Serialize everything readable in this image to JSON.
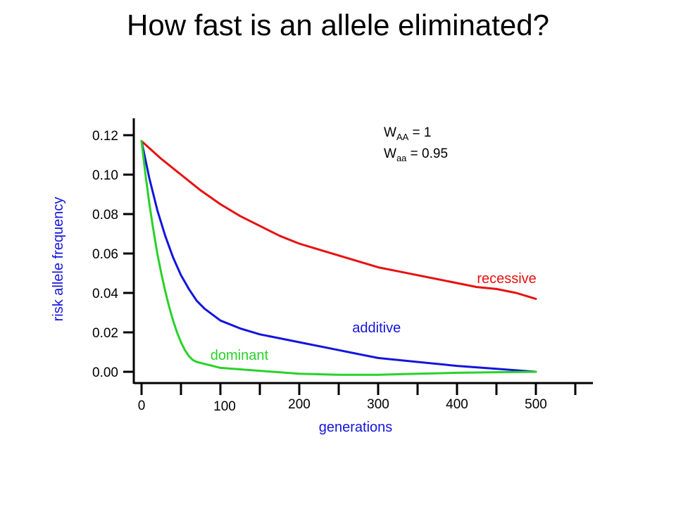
{
  "title": "How fast is an allele eliminated?",
  "chart_data": {
    "type": "line",
    "xlabel": "generations",
    "ylabel": "risk allele frequency",
    "xlim": [
      0,
      500
    ],
    "ylim": [
      0,
      0.12
    ],
    "x_ticks": [
      0,
      100,
      200,
      300,
      400,
      500
    ],
    "x_tick_labels": [
      "0",
      "100",
      "200",
      "300",
      "400",
      "500"
    ],
    "y_ticks": [
      0,
      0.02,
      0.04,
      0.06,
      0.08,
      0.1,
      0.12
    ],
    "y_tick_labels": [
      "0.00",
      "0.02",
      "0.04",
      "0.06",
      "0.08",
      "0.10",
      "0.12"
    ],
    "grid": false,
    "annotations": [
      {
        "base": "W",
        "sub": "AA",
        "rest": " = 1"
      },
      {
        "base": "W",
        "sub": "aa",
        "rest": " = 0.95"
      }
    ],
    "series": [
      {
        "name": "recessive",
        "color": "#e81010",
        "x": [
          0,
          25,
          50,
          75,
          100,
          125,
          150,
          175,
          200,
          225,
          250,
          275,
          300,
          325,
          350,
          375,
          400,
          425,
          450,
          475,
          500
        ],
        "y": [
          0.117,
          0.108,
          0.1,
          0.092,
          0.085,
          0.079,
          0.074,
          0.069,
          0.065,
          0.062,
          0.059,
          0.056,
          0.053,
          0.051,
          0.049,
          0.047,
          0.045,
          0.043,
          0.042,
          0.04,
          0.037
        ]
      },
      {
        "name": "additive",
        "color": "#1414dc",
        "x": [
          0,
          10,
          20,
          30,
          40,
          50,
          60,
          70,
          80,
          90,
          100,
          125,
          150,
          175,
          200,
          250,
          300,
          350,
          400,
          450,
          500
        ],
        "y": [
          0.117,
          0.098,
          0.082,
          0.069,
          0.058,
          0.049,
          0.042,
          0.036,
          0.032,
          0.029,
          0.026,
          0.022,
          0.019,
          0.017,
          0.015,
          0.011,
          0.007,
          0.005,
          0.003,
          0.0015,
          0.0
        ]
      },
      {
        "name": "dominant",
        "color": "#28d228",
        "x": [
          0,
          5,
          10,
          15,
          20,
          25,
          30,
          35,
          40,
          45,
          50,
          55,
          60,
          65,
          70,
          80,
          90,
          100,
          150,
          200,
          250,
          300,
          350,
          400,
          450,
          500
        ],
        "y": [
          0.117,
          0.1,
          0.085,
          0.072,
          0.06,
          0.05,
          0.041,
          0.033,
          0.026,
          0.02,
          0.015,
          0.011,
          0.008,
          0.006,
          0.005,
          0.004,
          0.003,
          0.002,
          0.0005,
          -0.001,
          -0.0015,
          -0.0015,
          -0.001,
          -0.0005,
          -0.0002,
          0.0
        ]
      }
    ],
    "series_labels": [
      {
        "text": "recessive",
        "color": "#e81010",
        "x": 463,
        "y": 0.045
      },
      {
        "text": "additive",
        "color": "#1414dc",
        "x": 298,
        "y": 0.02
      },
      {
        "text": "dominant",
        "color": "#28d228",
        "x": 124,
        "y": 0.006
      }
    ]
  }
}
